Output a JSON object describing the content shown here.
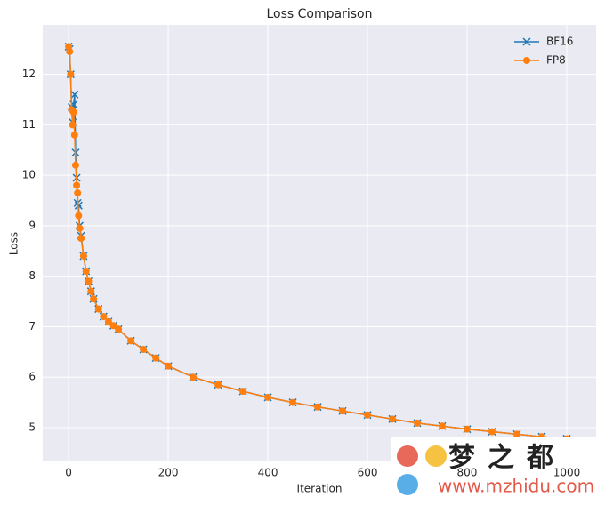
{
  "chart_data": {
    "type": "line",
    "title": "Loss Comparison",
    "x_label": "Iteration",
    "y_label": "Loss",
    "x": [
      0,
      2,
      4,
      6,
      8,
      10,
      12,
      14,
      16,
      18,
      20,
      22,
      25,
      30,
      35,
      40,
      45,
      50,
      60,
      70,
      80,
      90,
      100,
      125,
      150,
      175,
      200,
      250,
      300,
      350,
      400,
      450,
      500,
      550,
      600,
      650,
      700,
      750,
      800,
      850,
      900,
      950,
      1000
    ],
    "series": [
      {
        "name": "BF16",
        "color": "#1f77b4",
        "marker": "x",
        "values": [
          12.55,
          12.5,
          12.0,
          11.35,
          11.05,
          11.4,
          11.6,
          10.45,
          9.95,
          9.45,
          9.4,
          9.0,
          8.8,
          8.4,
          8.1,
          7.9,
          7.7,
          7.55,
          7.35,
          7.2,
          7.1,
          7.02,
          6.95,
          6.72,
          6.55,
          6.38,
          6.22,
          6.0,
          5.85,
          5.72,
          5.6,
          5.5,
          5.41,
          5.33,
          5.25,
          5.17,
          5.09,
          5.03,
          4.97,
          4.92,
          4.87,
          4.82,
          4.78
        ]
      },
      {
        "name": "FP8",
        "color": "#ff7f0e",
        "marker": "o",
        "values": [
          12.55,
          12.45,
          12.0,
          11.3,
          11.0,
          11.25,
          10.8,
          10.2,
          9.8,
          9.65,
          9.2,
          8.95,
          8.75,
          8.4,
          8.1,
          7.9,
          7.7,
          7.55,
          7.35,
          7.2,
          7.1,
          7.02,
          6.95,
          6.72,
          6.55,
          6.38,
          6.22,
          6.0,
          5.85,
          5.72,
          5.6,
          5.5,
          5.41,
          5.33,
          5.25,
          5.17,
          5.09,
          5.03,
          4.97,
          4.92,
          4.87,
          4.82,
          4.78
        ]
      }
    ],
    "xlim": [
      -52,
      1059
    ],
    "xticks": [
      0,
      200,
      400,
      600,
      800,
      1000
    ],
    "ylim": [
      4.33,
      12.98
    ],
    "yticks": [
      5,
      6,
      7,
      8,
      9,
      10,
      11,
      12
    ],
    "grid": true,
    "legend": "upper right"
  },
  "watermark": {
    "name": "梦之都",
    "url": "www.mzhidu.com"
  }
}
